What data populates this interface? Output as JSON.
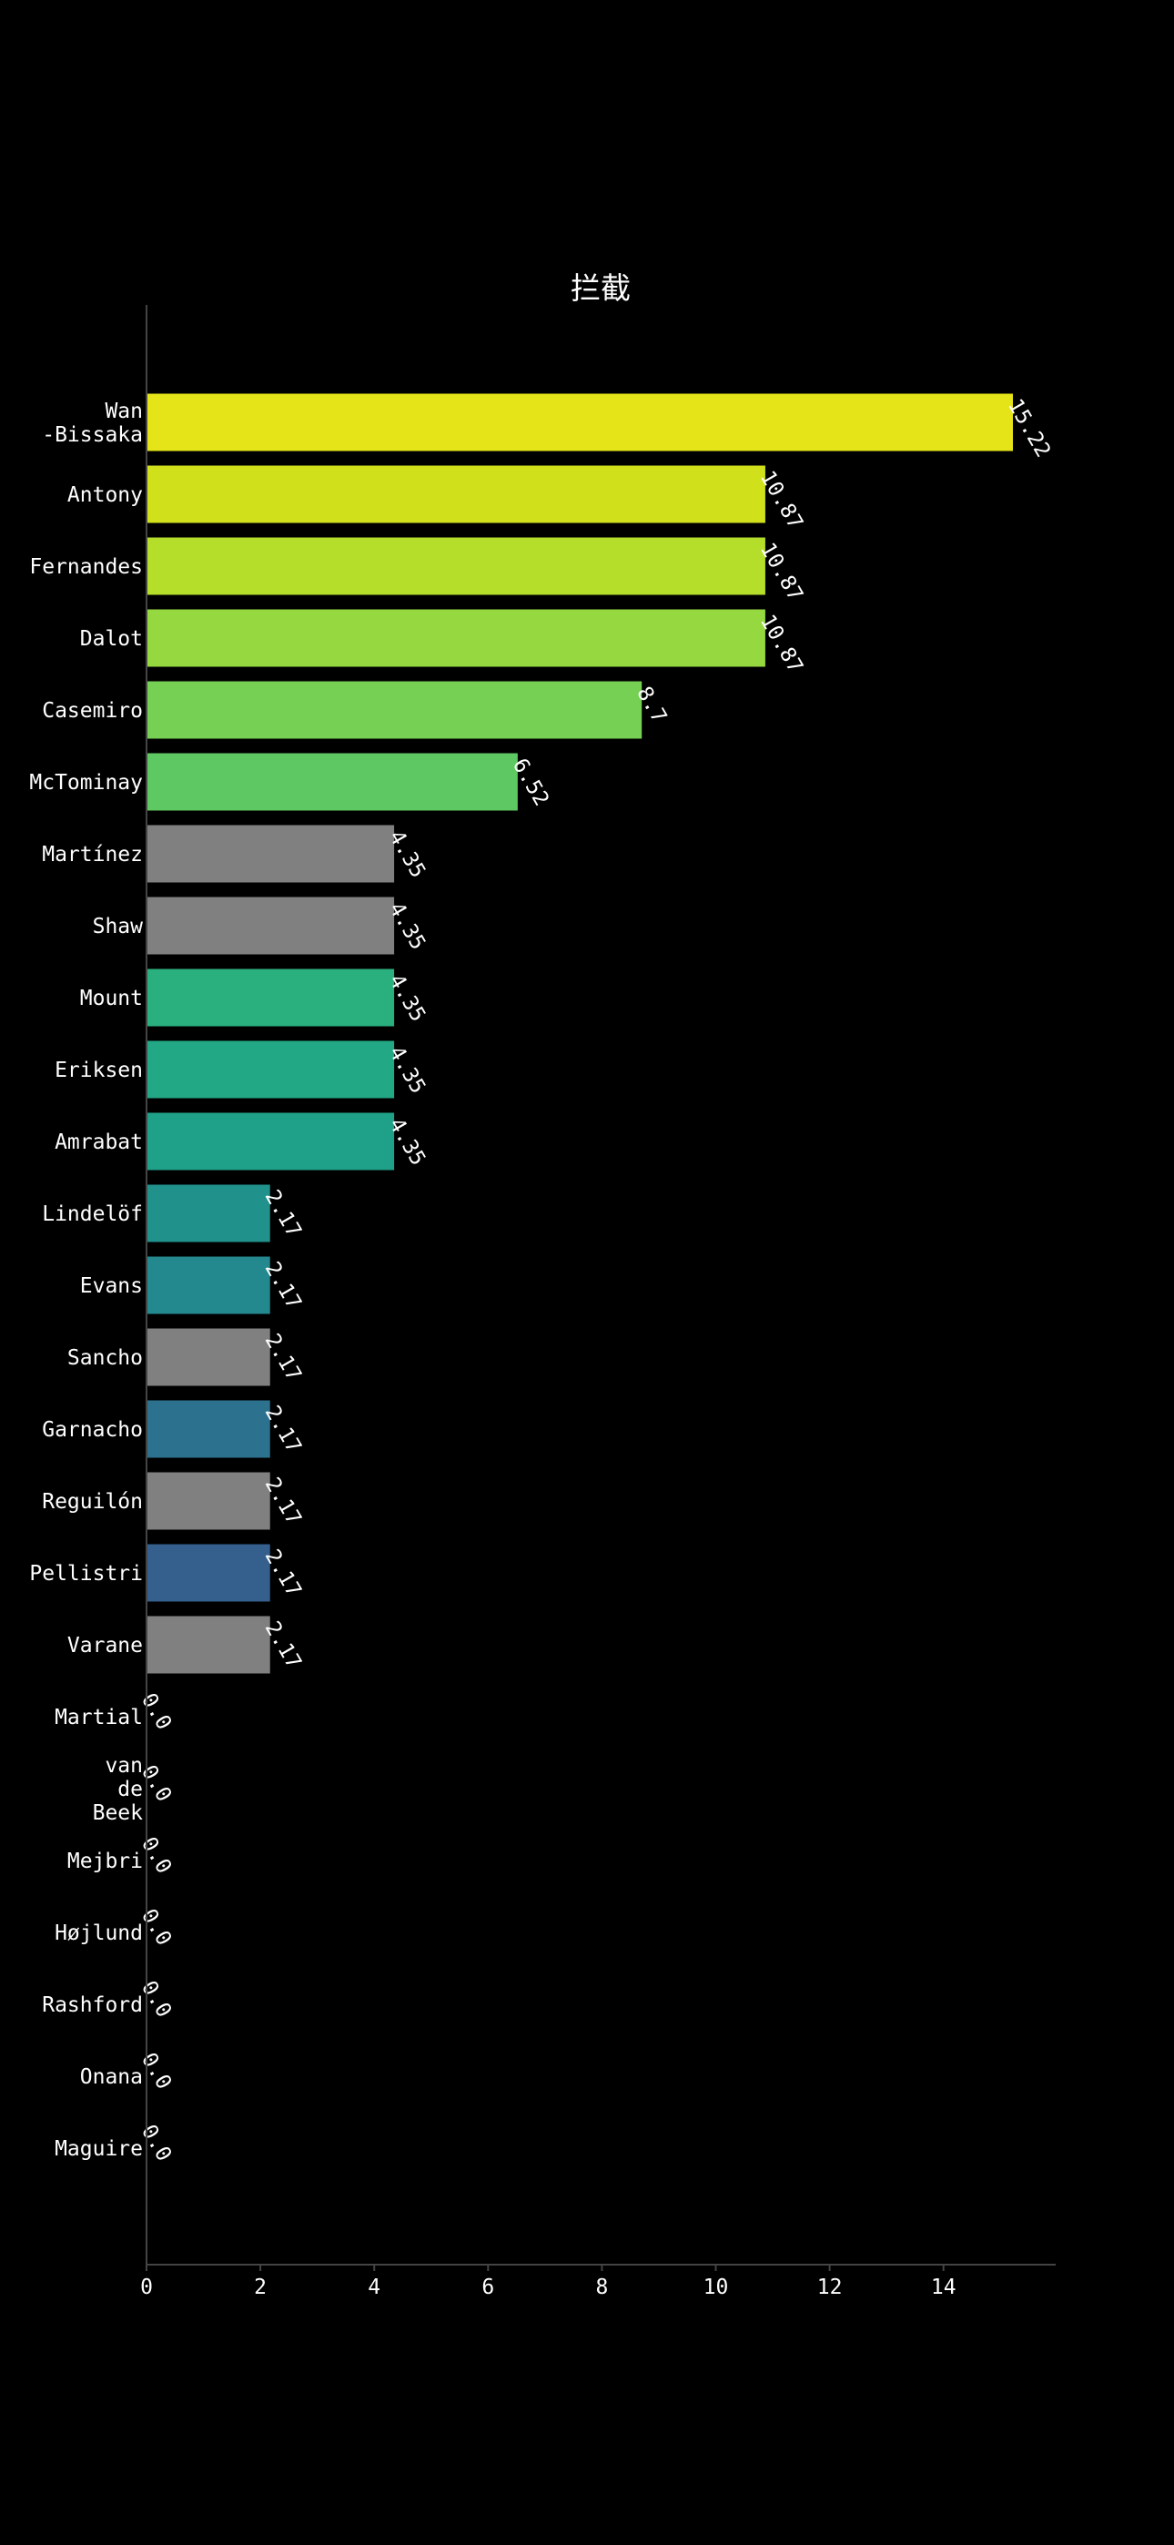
{
  "chart_data": {
    "type": "bar",
    "orientation": "horizontal",
    "title": "拦截",
    "xlabel": "",
    "ylabel": "",
    "xlim": [
      0,
      16
    ],
    "xticks": [
      0,
      2,
      4,
      6,
      8,
      10,
      12,
      14
    ],
    "grid": false,
    "legend": "none",
    "value_label_rotation_deg": 60,
    "categories": [
      [
        "Wan",
        "-Bissaka"
      ],
      [
        "Antony"
      ],
      [
        "Fernandes"
      ],
      [
        "Dalot"
      ],
      [
        "Casemiro"
      ],
      [
        "McTominay"
      ],
      [
        "Martínez"
      ],
      [
        "Shaw"
      ],
      [
        "Mount"
      ],
      [
        "Eriksen"
      ],
      [
        "Amrabat"
      ],
      [
        "Lindelöf"
      ],
      [
        "Evans"
      ],
      [
        "Sancho"
      ],
      [
        "Garnacho"
      ],
      [
        "Reguilón"
      ],
      [
        "Pellistri"
      ],
      [
        "Varane"
      ],
      [
        "Martial"
      ],
      [
        "van",
        "de",
        "Beek"
      ],
      [
        "Mejbri"
      ],
      [
        "Højlund"
      ],
      [
        "Rashford"
      ],
      [
        "Onana"
      ],
      [
        "Maguire"
      ]
    ],
    "values": [
      15.22,
      10.87,
      10.87,
      10.87,
      8.7,
      6.52,
      4.35,
      4.35,
      4.35,
      4.35,
      4.35,
      2.17,
      2.17,
      2.17,
      2.17,
      2.17,
      2.17,
      2.17,
      0.0,
      0.0,
      0.0,
      0.0,
      0.0,
      0.0,
      0.0
    ],
    "value_labels": [
      "15.22",
      "10.87",
      "10.87",
      "10.87",
      "8.7",
      "6.52",
      "4.35",
      "4.35",
      "4.35",
      "4.35",
      "4.35",
      "2.17",
      "2.17",
      "2.17",
      "2.17",
      "2.17",
      "2.17",
      "2.17",
      "0.0",
      "0.0",
      "0.0",
      "0.0",
      "0.0",
      "0.0",
      "0.0"
    ],
    "colors": [
      "#e5e419",
      "#d0e11c",
      "#b5de2b",
      "#95d840",
      "#75d054",
      "#5ec962",
      "#808080",
      "#808080",
      "#2ab07f",
      "#22a884",
      "#1fa088",
      "#21918c",
      "#23898e",
      "#808080",
      "#2c728e",
      "#808080",
      "#355f8d",
      "#808080",
      "#808080",
      "#808080",
      "#808080",
      "#808080",
      "#808080",
      "#808080",
      "#808080"
    ]
  },
  "colors": {
    "background": "#000000",
    "text": "#ffffff",
    "axis": "#444444"
  }
}
